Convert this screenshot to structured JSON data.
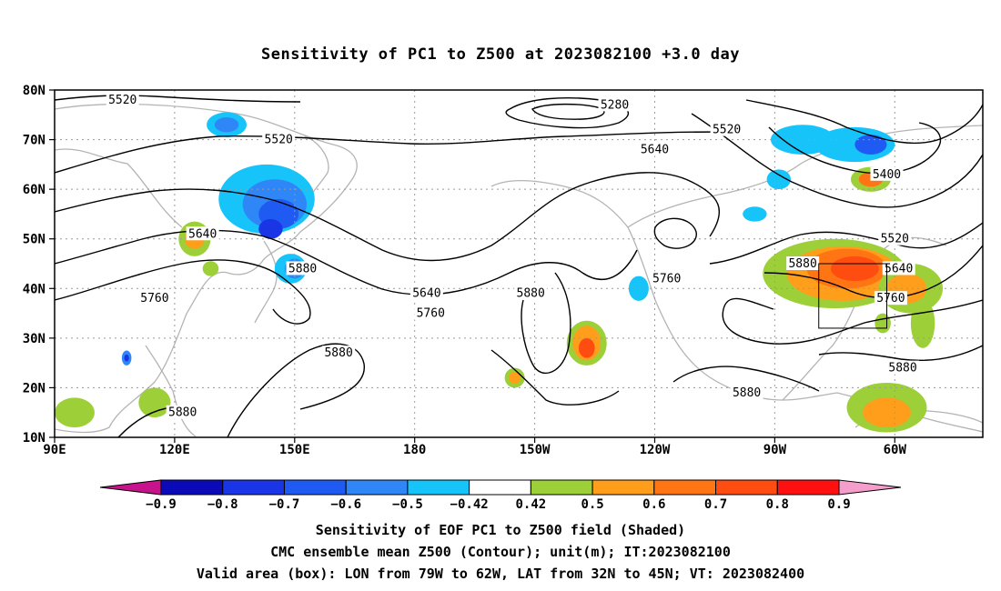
{
  "title": "Sensitivity of PC1 to Z500 at 2023082100 +3.0 day",
  "lat_labels": [
    "80N",
    "70N",
    "60N",
    "50N",
    "40N",
    "30N",
    "20N",
    "10N"
  ],
  "lon_labels": [
    "90E",
    "120E",
    "150E",
    "180",
    "150W",
    "120W",
    "90W",
    "60W"
  ],
  "contour_labels": [
    {
      "text": "5520",
      "lon": 107
    },
    {
      "text": "5280",
      "lon": -130
    },
    {
      "text": "5520",
      "lon": 146
    },
    {
      "text": "5520",
      "lon": -102
    },
    {
      "text": "5640",
      "lon": -120
    },
    {
      "text": "5400",
      "lon": -62
    },
    {
      "text": "5640",
      "lon": 127
    },
    {
      "text": "5880",
      "lon": 152
    },
    {
      "text": "5760",
      "lon": 115
    },
    {
      "text": "5640",
      "lon": -177
    },
    {
      "text": "5760",
      "lon": -176
    },
    {
      "text": "5880",
      "lon": -151
    },
    {
      "text": "5760",
      "lon": -117
    },
    {
      "text": "5880",
      "lon": -83
    },
    {
      "text": "5520",
      "lon": -60
    },
    {
      "text": "5640",
      "lon": -59
    },
    {
      "text": "5760",
      "lon": -61
    },
    {
      "text": "5880",
      "lon": -58
    },
    {
      "text": "5880",
      "lon": 161
    },
    {
      "text": "5880",
      "lon": 122
    },
    {
      "text": "5880",
      "lon": -97
    }
  ],
  "colorbar": {
    "labels": [
      "−0.9",
      "−0.8",
      "−0.7",
      "−0.6",
      "−0.5",
      "−0.42",
      "0.42",
      "0.5",
      "0.6",
      "0.7",
      "0.8",
      "0.9"
    ],
    "colors": [
      "#0a0ab8",
      "#1a35e6",
      "#1f5bf2",
      "#2f86f6",
      "#16c4fa",
      "#ffffff",
      "#9dcf39",
      "#ff9e1a",
      "#ff7514",
      "#ff4d12",
      "#ff1010"
    ],
    "left_tri": "#c8148c",
    "right_tri": "#f59dcb"
  },
  "captions": [
    "Sensitivity of EOF PC1 to Z500 field (Shaded)",
    "CMC ensemble mean Z500 (Contour); unit(m); IT:2023082100",
    "Valid area (box): LON from 79W to 62W, LAT from 32N to 45N; VT: 2023082400"
  ],
  "valid_box": {
    "lon_from": -79,
    "lon_to": -62,
    "lat_from": 32,
    "lat_to": 45
  }
}
